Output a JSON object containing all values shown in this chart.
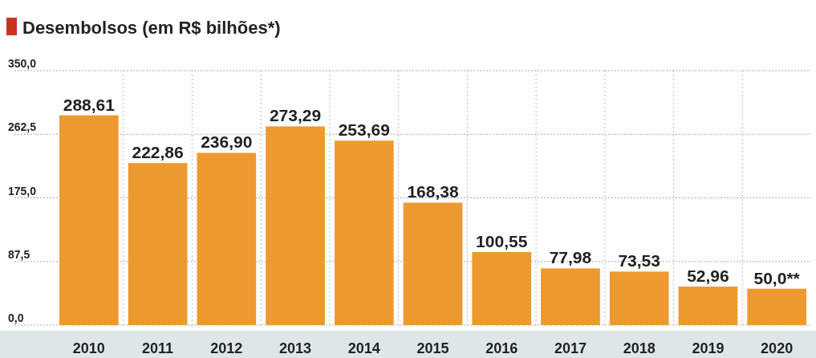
{
  "chart_data": {
    "type": "bar",
    "title": "Desembolsos (em R$ bilhões*)",
    "categories": [
      "2010",
      "2011",
      "2012",
      "2013",
      "2014",
      "2015",
      "2016",
      "2017",
      "2018",
      "2019",
      "2020"
    ],
    "values": [
      288.61,
      222.86,
      236.9,
      273.29,
      253.69,
      168.38,
      100.55,
      77.98,
      73.53,
      52.96,
      50.0
    ],
    "value_labels": [
      "288,61",
      "222,86",
      "236,90",
      "273,29",
      "253,69",
      "168,38",
      "100,55",
      "77,98",
      "73,53",
      "52,96",
      "50,0**"
    ],
    "color": "#ec9a30",
    "ylim": [
      0,
      350
    ],
    "yticks": [
      {
        "value": 0,
        "label": "0,0"
      },
      {
        "value": 87.5,
        "label": "87,5"
      },
      {
        "value": 175,
        "label": "175,0"
      },
      {
        "value": 262.5,
        "label": "262,5"
      },
      {
        "value": 350,
        "label": "350,0"
      }
    ],
    "grid": true
  }
}
